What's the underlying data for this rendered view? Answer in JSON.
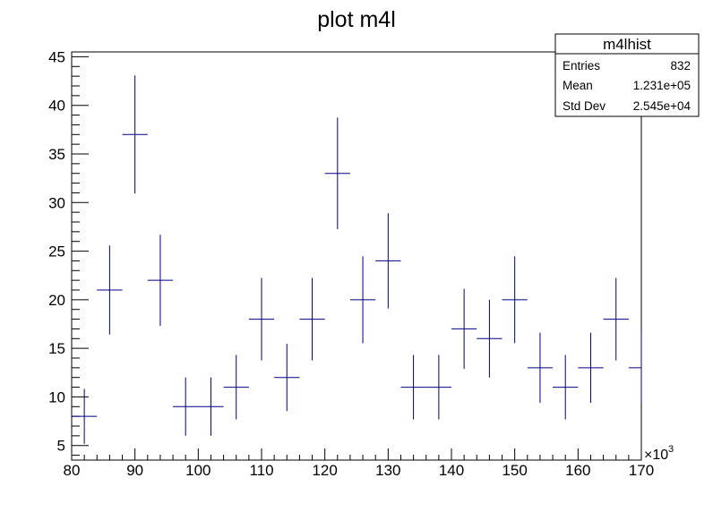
{
  "chart_data": {
    "type": "scatter",
    "title": "plot m4l",
    "xlabel": "",
    "ylabel": "",
    "x_axis_exponent": "×10",
    "x_axis_exponent_power": "3",
    "xlim": [
      80,
      170
    ],
    "ylim": [
      3.5,
      45.5
    ],
    "x_ticks": [
      "80",
      "90",
      "100",
      "110",
      "120",
      "130",
      "140",
      "150",
      "160",
      "170"
    ],
    "y_ticks": [
      "5",
      "10",
      "15",
      "20",
      "25",
      "30",
      "35",
      "40",
      "45"
    ],
    "bin_width": 4,
    "series": [
      {
        "bins": [
          {
            "x": 82,
            "y": 8,
            "err": 2.83
          },
          {
            "x": 86,
            "y": 21,
            "err": 4.58
          },
          {
            "x": 90,
            "y": 37,
            "err": 6.08
          },
          {
            "x": 94,
            "y": 22,
            "err": 4.69
          },
          {
            "x": 98,
            "y": 9,
            "err": 3.0
          },
          {
            "x": 102,
            "y": 9,
            "err": 3.0
          },
          {
            "x": 106,
            "y": 11,
            "err": 3.32
          },
          {
            "x": 110,
            "y": 18,
            "err": 4.24
          },
          {
            "x": 114,
            "y": 12,
            "err": 3.46
          },
          {
            "x": 118,
            "y": 18,
            "err": 4.24
          },
          {
            "x": 122,
            "y": 33,
            "err": 5.74
          },
          {
            "x": 126,
            "y": 20,
            "err": 4.47
          },
          {
            "x": 130,
            "y": 24,
            "err": 4.9
          },
          {
            "x": 134,
            "y": 11,
            "err": 3.32
          },
          {
            "x": 138,
            "y": 11,
            "err": 3.32
          },
          {
            "x": 142,
            "y": 17,
            "err": 4.12
          },
          {
            "x": 146,
            "y": 16,
            "err": 4.0
          },
          {
            "x": 150,
            "y": 20,
            "err": 4.47
          },
          {
            "x": 154,
            "y": 13,
            "err": 3.61
          },
          {
            "x": 158,
            "y": 11,
            "err": 3.32
          },
          {
            "x": 162,
            "y": 13,
            "err": 3.61
          },
          {
            "x": 166,
            "y": 18,
            "err": 4.24
          },
          {
            "x": 170,
            "y": 13,
            "err": 3.61
          }
        ]
      }
    ],
    "grid": false,
    "colors": {
      "marker": "#000080",
      "axis": "#000000",
      "background": "#ffffff"
    }
  },
  "stats_box": {
    "title": "m4lhist",
    "rows": [
      {
        "label": "Entries",
        "value": "832"
      },
      {
        "label": "Mean",
        "value": "1.231e+05"
      },
      {
        "label": "Std Dev",
        "value": "2.545e+04"
      }
    ]
  }
}
